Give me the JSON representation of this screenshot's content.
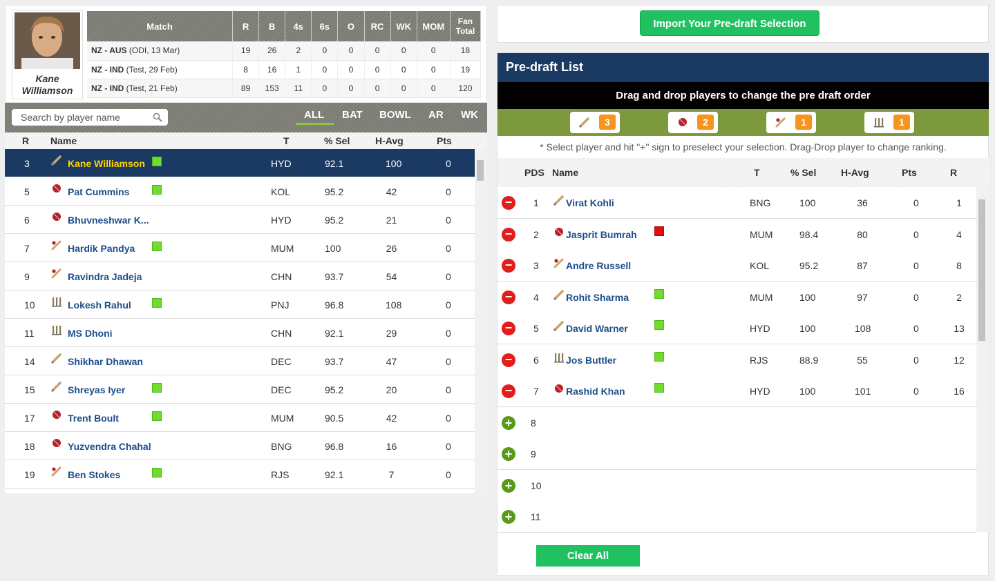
{
  "profile": {
    "name_line1": "Kane",
    "name_line2": "Williamson",
    "headers": [
      "Match",
      "R",
      "B",
      "4s",
      "6s",
      "O",
      "RC",
      "WK",
      "MOM",
      "Fan Total"
    ],
    "matches": [
      {
        "teams": "NZ - AUS",
        "detail": "(ODI, 13 Mar)",
        "r": "19",
        "b": "26",
        "fours": "2",
        "sixes": "0",
        "o": "0",
        "rc": "0",
        "wk": "0",
        "mom": "0",
        "fan": "18"
      },
      {
        "teams": "NZ - IND",
        "detail": "(Test, 29 Feb)",
        "r": "8",
        "b": "16",
        "fours": "1",
        "sixes": "0",
        "o": "0",
        "rc": "0",
        "wk": "0",
        "mom": "0",
        "fan": "19"
      },
      {
        "teams": "NZ - IND",
        "detail": "(Test, 21 Feb)",
        "r": "89",
        "b": "153",
        "fours": "11",
        "sixes": "0",
        "o": "0",
        "rc": "0",
        "wk": "0",
        "mom": "0",
        "fan": "120"
      }
    ]
  },
  "search": {
    "placeholder": "Search by player name"
  },
  "filters": [
    "ALL",
    "BAT",
    "BOWL",
    "AR",
    "WK"
  ],
  "player_headers": {
    "r": "R",
    "name": "Name",
    "t": "T",
    "sel": "% Sel",
    "havg": "H-Avg",
    "pts": "Pts"
  },
  "players": [
    {
      "r": "3",
      "name": "Kane Williamson",
      "role": "bat",
      "flag": "green",
      "t": "HYD",
      "sel": "92.1",
      "havg": "100",
      "pts": "0",
      "selected": true
    },
    {
      "r": "5",
      "name": "Pat Cummins",
      "role": "bowl",
      "flag": "green",
      "t": "KOL",
      "sel": "95.2",
      "havg": "42",
      "pts": "0"
    },
    {
      "r": "6",
      "name": "Bhuvneshwar K...",
      "role": "bowl",
      "flag": "",
      "t": "HYD",
      "sel": "95.2",
      "havg": "21",
      "pts": "0"
    },
    {
      "r": "7",
      "name": "Hardik Pandya",
      "role": "ar",
      "flag": "green",
      "t": "MUM",
      "sel": "100",
      "havg": "26",
      "pts": "0"
    },
    {
      "r": "9",
      "name": "Ravindra Jadeja",
      "role": "ar",
      "flag": "",
      "t": "CHN",
      "sel": "93.7",
      "havg": "54",
      "pts": "0"
    },
    {
      "r": "10",
      "name": "Lokesh Rahul",
      "role": "wk",
      "flag": "green",
      "t": "PNJ",
      "sel": "96.8",
      "havg": "108",
      "pts": "0"
    },
    {
      "r": "11",
      "name": "MS Dhoni",
      "role": "wk",
      "flag": "",
      "t": "CHN",
      "sel": "92.1",
      "havg": "29",
      "pts": "0"
    },
    {
      "r": "14",
      "name": "Shikhar Dhawan",
      "role": "bat",
      "flag": "",
      "t": "DEC",
      "sel": "93.7",
      "havg": "47",
      "pts": "0"
    },
    {
      "r": "15",
      "name": "Shreyas Iyer",
      "role": "bat",
      "flag": "green",
      "t": "DEC",
      "sel": "95.2",
      "havg": "20",
      "pts": "0"
    },
    {
      "r": "17",
      "name": "Trent Boult",
      "role": "bowl",
      "flag": "green",
      "t": "MUM",
      "sel": "90.5",
      "havg": "42",
      "pts": "0"
    },
    {
      "r": "18",
      "name": "Yuzvendra Chahal",
      "role": "bowl",
      "flag": "",
      "t": "BNG",
      "sel": "96.8",
      "havg": "16",
      "pts": "0"
    },
    {
      "r": "19",
      "name": "Ben Stokes",
      "role": "ar",
      "flag": "green",
      "t": "RJS",
      "sel": "92.1",
      "havg": "7",
      "pts": "0"
    }
  ],
  "import_button": "Import Your Pre-draft Selection",
  "predraft": {
    "title": "Pre-draft List",
    "subtitle": "Drag and drop players to change the pre draft order",
    "counts": [
      {
        "role": "bat",
        "count": "3"
      },
      {
        "role": "bowl",
        "count": "2"
      },
      {
        "role": "ar",
        "count": "1"
      },
      {
        "role": "wk",
        "count": "1"
      }
    ],
    "note": "* Select player and hit \"+\" sign to preselect your selection. Drag-Drop player to change ranking.",
    "headers": {
      "pds": "PDS",
      "name": "Name",
      "t": "T",
      "sel": "% Sel",
      "havg": "H-Avg",
      "pts": "Pts",
      "r": "R"
    },
    "rows": [
      {
        "pds": "1",
        "name": "Virat Kohli",
        "role": "bat",
        "flag": "",
        "t": "BNG",
        "sel": "100",
        "havg": "36",
        "pts": "0",
        "r": "1"
      },
      {
        "pds": "2",
        "name": "Jasprit Bumrah",
        "role": "bowl",
        "flag": "red",
        "t": "MUM",
        "sel": "98.4",
        "havg": "80",
        "pts": "0",
        "r": "4"
      },
      {
        "pds": "3",
        "name": "Andre Russell",
        "role": "ar",
        "flag": "",
        "t": "KOL",
        "sel": "95.2",
        "havg": "87",
        "pts": "0",
        "r": "8"
      },
      {
        "pds": "4",
        "name": "Rohit Sharma",
        "role": "bat",
        "flag": "green",
        "t": "MUM",
        "sel": "100",
        "havg": "97",
        "pts": "0",
        "r": "2"
      },
      {
        "pds": "5",
        "name": "David Warner",
        "role": "bat",
        "flag": "green",
        "t": "HYD",
        "sel": "100",
        "havg": "108",
        "pts": "0",
        "r": "13"
      },
      {
        "pds": "6",
        "name": "Jos Buttler",
        "role": "wk",
        "flag": "green",
        "t": "RJS",
        "sel": "88.9",
        "havg": "55",
        "pts": "0",
        "r": "12"
      },
      {
        "pds": "7",
        "name": "Rashid Khan",
        "role": "bowl",
        "flag": "green",
        "t": "HYD",
        "sel": "100",
        "havg": "101",
        "pts": "0",
        "r": "16"
      }
    ],
    "empty_slots": [
      "8",
      "9",
      "10",
      "11"
    ],
    "clear_button": "Clear All"
  }
}
